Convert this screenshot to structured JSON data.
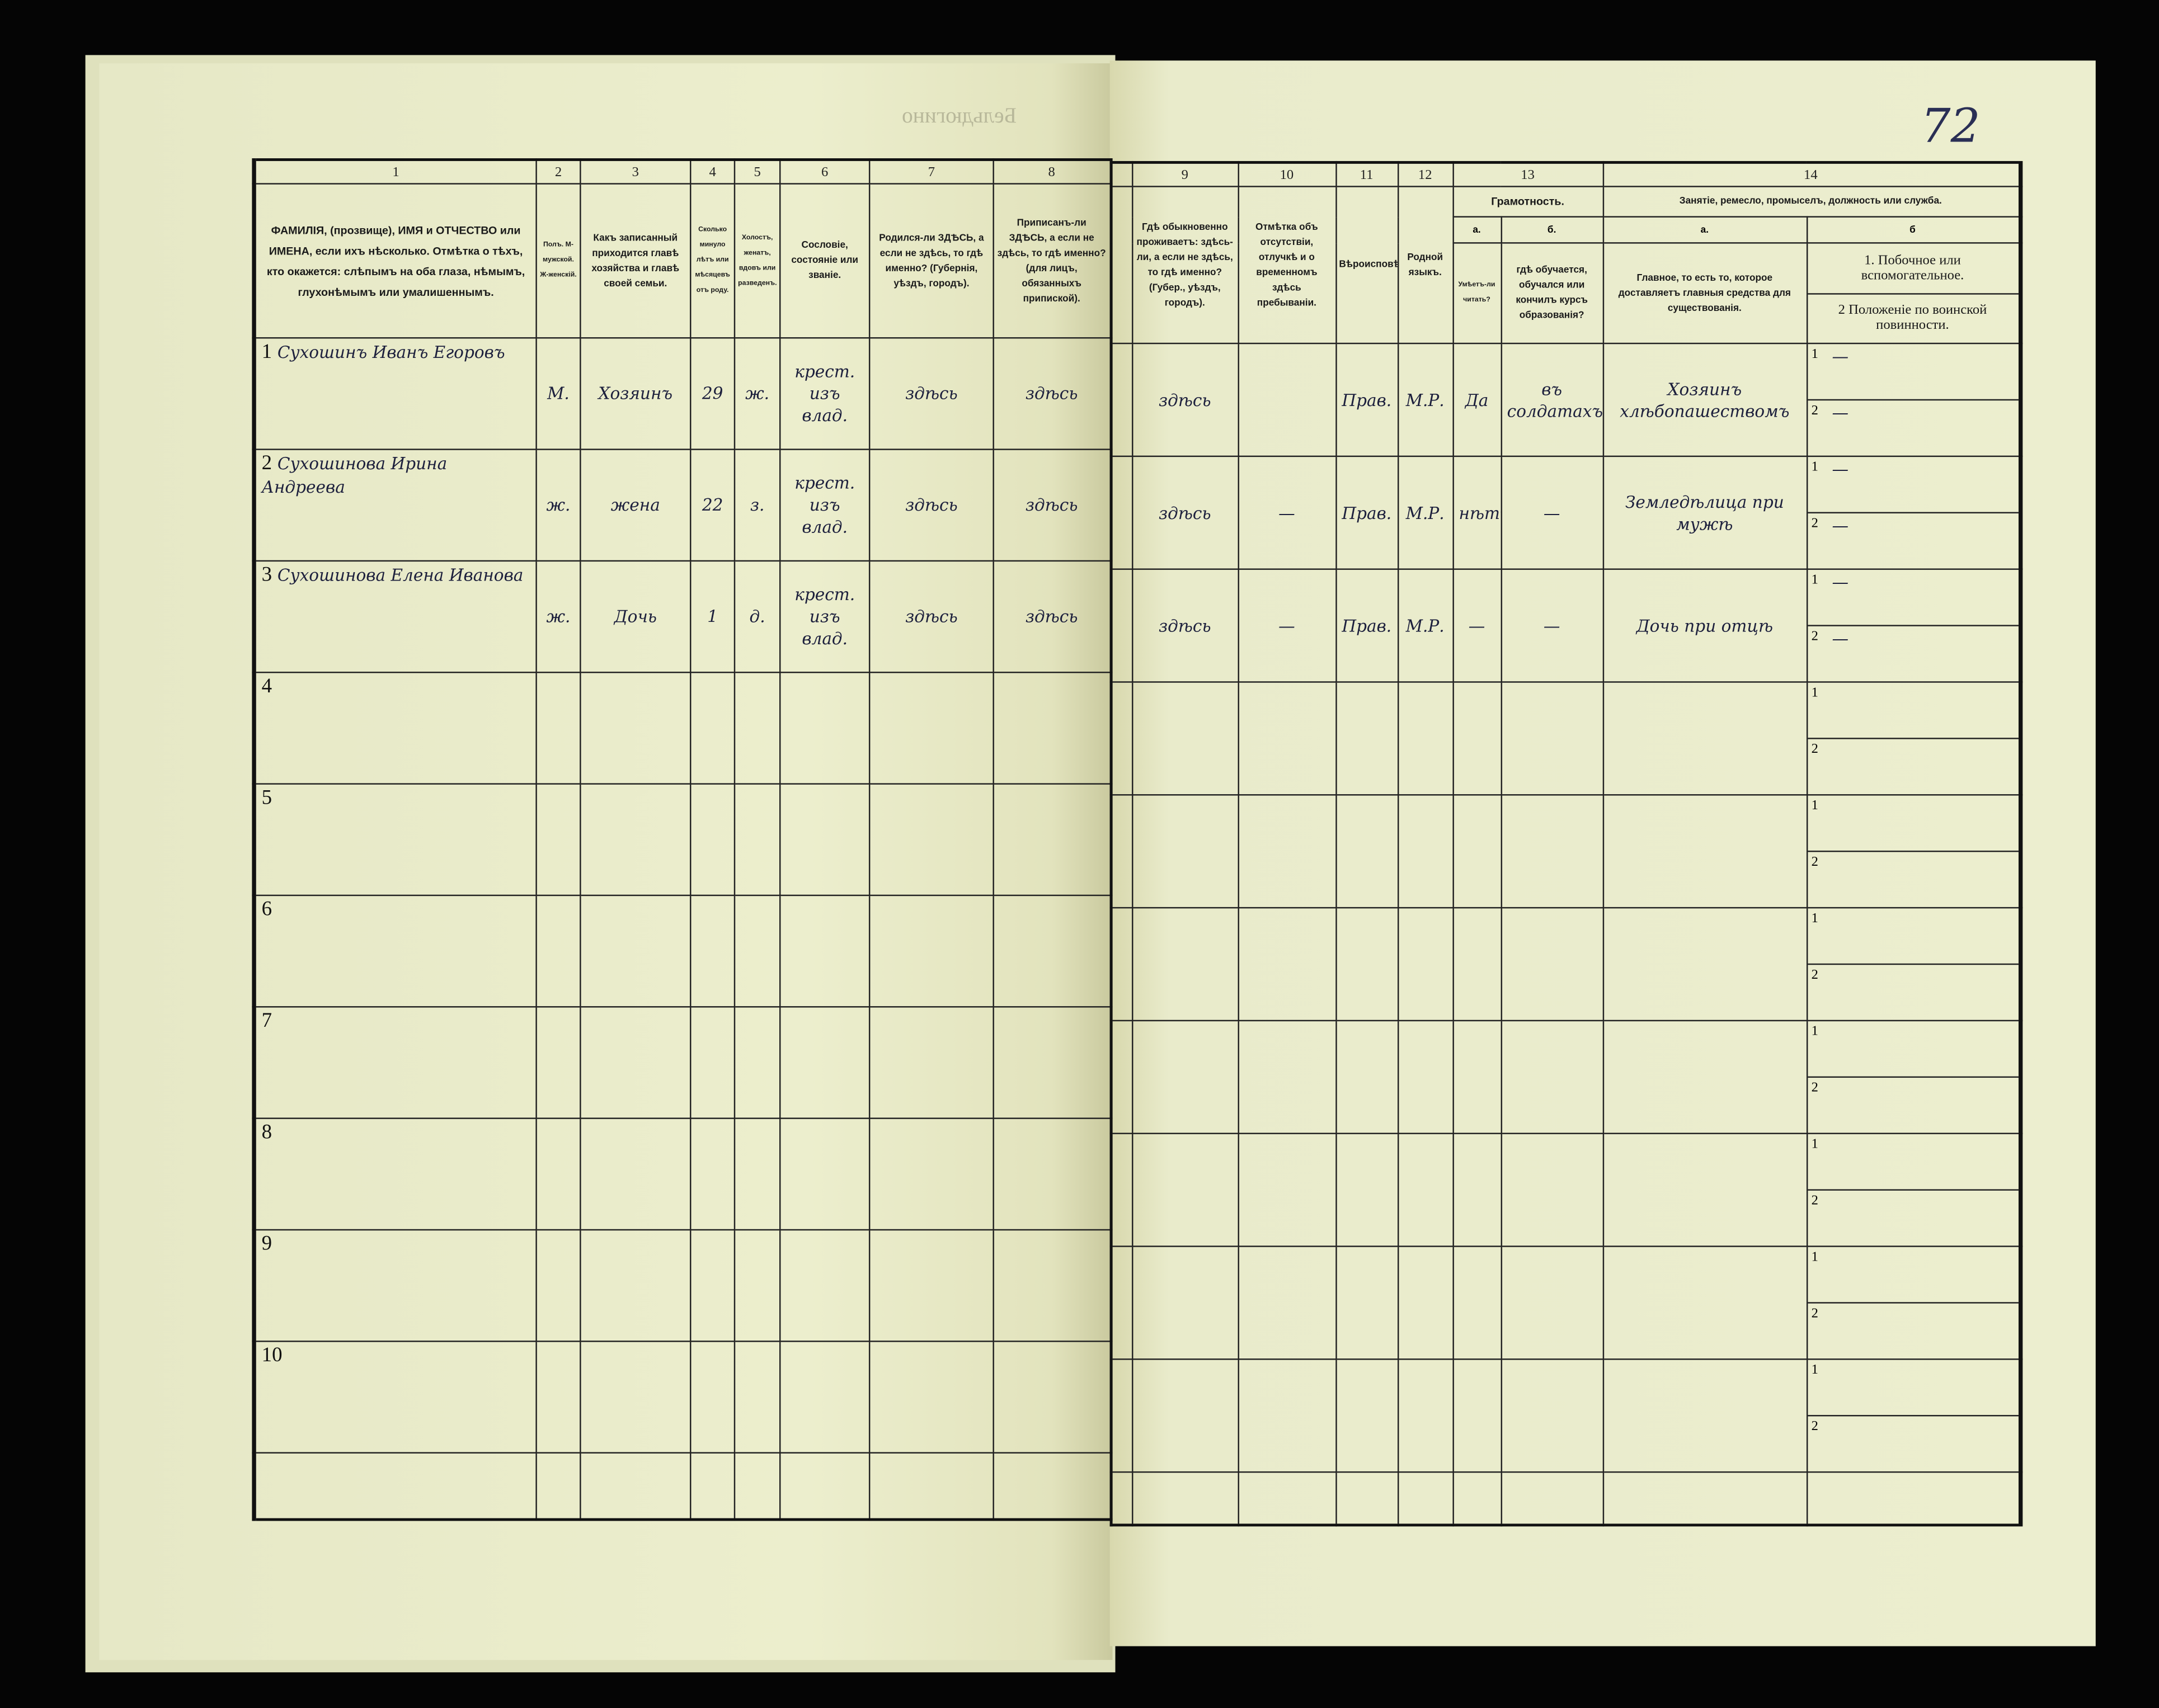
{
  "page_number": "72",
  "faint_stamp": "Бельдюгино",
  "left_table": {
    "column_numbers": [
      "1",
      "2",
      "3",
      "4",
      "5",
      "6",
      "7",
      "8"
    ],
    "headers": [
      "ФАМИЛІЯ, (прозвище), ИМЯ и ОТЧЕСТВО или ИМЕНА, если ихъ нѣсколько. Отмѣтка о тѣхъ, кто окажется: слѣпымъ на оба глаза, нѣмымъ, глухонѣмымъ или умалишеннымъ.",
      "Полъ. М-мужской. Ж-женскій.",
      "Какъ записанный приходится главѣ хозяйства и главѣ своей семьи.",
      "Сколько минуло лѣтъ или мѣсяцевъ отъ роду.",
      "Холостъ, женатъ, вдовъ или разведенъ.",
      "Сословіе, состояніе или званіе.",
      "Родился-ли ЗДѢСЬ, а если не здѣсь, то гдѣ именно? (Губернія, уѣздъ, городъ).",
      "Приписанъ-ли ЗДѢСЬ, а если не здѣсь, то гдѣ именно? (для лицъ, обязанныхъ припиской)."
    ]
  },
  "right_table": {
    "column_numbers": [
      "9",
      "10",
      "11",
      "12",
      "13",
      "14"
    ],
    "col9": "Гдѣ обыкновенно проживаетъ: здѣсь-ли, а если не здѣсь, то гдѣ именно? (Губер., уѣздъ, городъ).",
    "col10": "Отмѣтка объ отсутствіи, отлучкѣ и о временномъ здѣсь пребываніи.",
    "col11": "Вѣроисповѣданіе.",
    "col12": "Родной языкъ.",
    "col13": "Грамотность.",
    "col13a_label": "а.",
    "col13a": "Умѣетъ-ли читать?",
    "col13b_label": "б.",
    "col13b": "гдѣ обучается, обучался или кончилъ курсъ образованія?",
    "col14": "Занятіе, ремесло, промыселъ, должность или служба.",
    "col14a_label": "а.",
    "col14a": "Главное, то есть то, которое доставляетъ главныя средства для существованія.",
    "col14b_label": "б",
    "col14b_1": "1. Побочное или вспомогательное.",
    "col14b_2": "2 Положеніе по воинской повинности.",
    "sub_1": "1",
    "sub_2": "2"
  },
  "rows": [
    {
      "n": "1",
      "name": "Сухошинъ Иванъ Егоровъ",
      "sex": "М.",
      "relation": "Хозяинъ",
      "age": "29",
      "marital": "ж.",
      "estate": "крест. изъ влад.",
      "born": "здѣсь",
      "registered": "здѣсь",
      "residence": "здѣсь",
      "absence": "",
      "religion": "Прав.",
      "language": "М.Р.",
      "literate": "Да",
      "education": "въ солдатахъ",
      "occupation": "Хозяинъ хлѣбопашествомъ",
      "secondary": "—",
      "military": "—"
    },
    {
      "n": "2",
      "name": "Сухошинова Ирина Андреева",
      "sex": "ж.",
      "relation": "жена",
      "age": "22",
      "marital": "з.",
      "estate": "крест. изъ влад.",
      "born": "здѣсь",
      "registered": "здѣсь",
      "residence": "здѣсь",
      "absence": "—",
      "religion": "Прав.",
      "language": "М.Р.",
      "literate": "нѣтъ",
      "education": "—",
      "occupation": "Земледѣлица при мужѣ",
      "secondary": "—",
      "military": "—"
    },
    {
      "n": "3",
      "name": "Сухошинова Елена Иванова",
      "sex": "ж.",
      "relation": "Дочь",
      "age": "1",
      "marital": "д.",
      "estate": "крест. изъ влад.",
      "born": "здѣсь",
      "registered": "здѣсь",
      "residence": "здѣсь",
      "absence": "—",
      "religion": "Прав.",
      "language": "М.Р.",
      "literate": "—",
      "education": "—",
      "occupation": "Дочь при отцѣ",
      "secondary": "—",
      "military": "—"
    },
    {
      "n": "4"
    },
    {
      "n": "5"
    },
    {
      "n": "6"
    },
    {
      "n": "7"
    },
    {
      "n": "8"
    },
    {
      "n": "9"
    },
    {
      "n": "10"
    }
  ],
  "colors": {
    "paper": "#e9ebc9",
    "ink_print": "#1a1a1a",
    "ink_hand": "#1c1f3c",
    "background": "#050505"
  }
}
